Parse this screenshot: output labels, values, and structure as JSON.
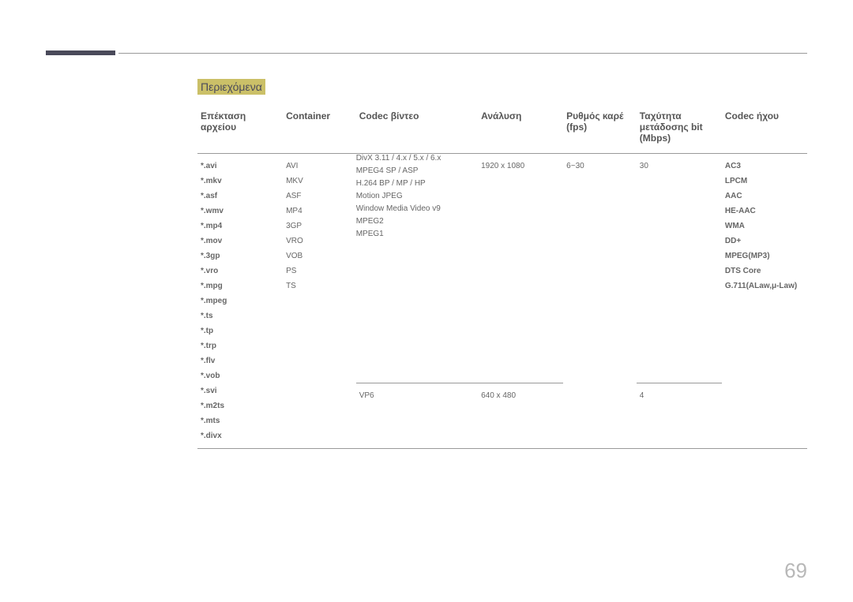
{
  "section_title": "Περιεχόμενα",
  "page_number": "69",
  "colors": {
    "section_bg": "#cbc068",
    "section_fg": "#4a4a5a",
    "bar": "#4a4a5a",
    "rule": "#999999",
    "text": "#555555",
    "cell_text": "#666666",
    "pagenum": "#b8b8b8"
  },
  "headers": {
    "ext": "Επέκταση αρχείου",
    "container": "Container",
    "vcodec": "Codec βίντεο",
    "resolution": "Ανάλυση",
    "fps": "Ρυθμός καρέ (fps)",
    "bitrate": "Ταχύτητα μετάδοσης bit (Mbps)",
    "acodec": "Codec ήχου"
  },
  "file_extensions": [
    "*.avi",
    "*.mkv",
    "*.asf",
    "*.wmv",
    "*.mp4",
    "*.mov",
    "*.3gp",
    "*.vro",
    "*.mpg",
    "*.mpeg",
    "*.ts",
    "*.tp",
    "*.trp",
    "*.flv",
    "*.vob",
    "*.svi",
    "*.m2ts",
    "*.mts",
    "*.divx"
  ],
  "containers": [
    "AVI",
    "MKV",
    "ASF",
    "MP4",
    "3GP",
    "VRO",
    "VOB",
    "PS",
    "TS"
  ],
  "video_codecs": [
    "DivX 3.11 / 4.x / 5.x / 6.x",
    "MPEG4 SP / ASP",
    "H.264 BP / MP / HP",
    "Motion JPEG",
    "Window Media Video v9",
    "MPEG2",
    "MPEG1"
  ],
  "vp6_codec": "VP6",
  "resolution_main": "1920 x 1080",
  "resolution_vp6": "640 x 480",
  "fps_main": "6~30",
  "bitrate_main": "30",
  "bitrate_vp6": "4",
  "audio_codecs": [
    "AC3",
    "LPCM",
    "AAC",
    "HE-AAC",
    "WMA",
    "DD+",
    "MPEG(MP3)",
    "DTS Core",
    "G.711(ALaw,μ-Law)"
  ]
}
